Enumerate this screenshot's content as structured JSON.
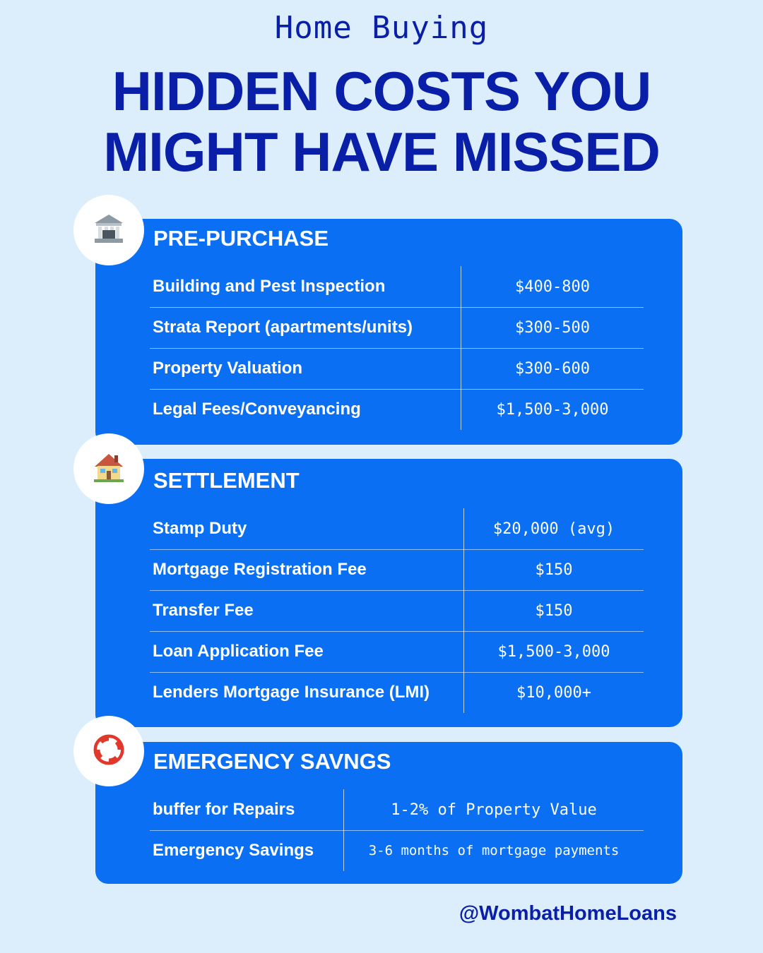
{
  "header": {
    "subtitle": "Home Buying",
    "title_line1": "HIDDEN COSTS YOU",
    "title_line2": "MIGHT HAVE MISSED"
  },
  "sections": [
    {
      "icon": "bank-icon",
      "title": "PRE-PURCHASE",
      "rows": [
        {
          "label": "Building and Pest Inspection",
          "value": "$400-800"
        },
        {
          "label": "Strata Report (apartments/units)",
          "value": "$300-500"
        },
        {
          "label": "Property Valuation",
          "value": "$300-600"
        },
        {
          "label": "Legal Fees/Conveyancing",
          "value": "$1,500-3,000"
        }
      ]
    },
    {
      "icon": "house-icon",
      "title": "SETTLEMENT",
      "rows": [
        {
          "label": "Stamp Duty",
          "value": "$20,000 (avg)"
        },
        {
          "label": "Mortgage Registration Fee",
          "value": "$150"
        },
        {
          "label": "Transfer Fee",
          "value": "$150"
        },
        {
          "label": "Loan Application Fee",
          "value": "$1,500-3,000"
        },
        {
          "label": "Lenders Mortgage Insurance (LMI)",
          "value": "$10,000+"
        }
      ]
    },
    {
      "icon": "life-ring-icon",
      "title": "EMERGENCY SAVNGS",
      "rows": [
        {
          "label": "buffer for Repairs",
          "value": "1-2% of Property Value"
        },
        {
          "label": "Emergency Savings",
          "value": "3-6 months of mortgage payments"
        }
      ]
    }
  ],
  "footer": {
    "handle": "@WombatHomeLoans"
  },
  "colors": {
    "background": "#dcedfb",
    "card": "#0a6ff2",
    "heading": "#0a1fa8"
  }
}
